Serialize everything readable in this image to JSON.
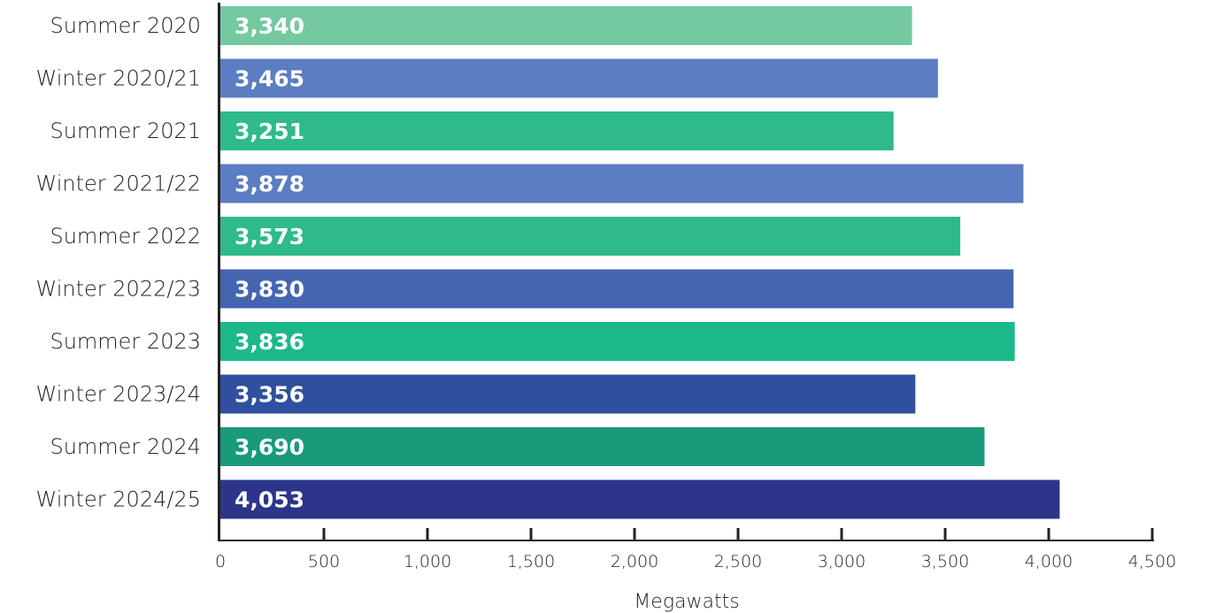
{
  "chart_data": {
    "type": "bar",
    "orientation": "horizontal",
    "categories": [
      "Summer 2020",
      "Winter 2020/21",
      "Summer 2021",
      "Winter 2021/22",
      "Summer 2022",
      "Winter 2022/23",
      "Summer 2023",
      "Winter 2023/24",
      "Summer 2024",
      "Winter 2024/25"
    ],
    "values": [
      3340,
      3465,
      3251,
      3878,
      3573,
      3830,
      3836,
      3356,
      3690,
      4053
    ],
    "value_labels": [
      "3,340",
      "3,465",
      "3,251",
      "3,878",
      "3,573",
      "3,830",
      "3,836",
      "3,356",
      "3,690",
      "4,053"
    ],
    "bar_colors": [
      "#74c9a0",
      "#5b7dc1",
      "#2fba8b",
      "#5b7dc1",
      "#2fba8b",
      "#4465b0",
      "#1bb88a",
      "#2f4f9f",
      "#199a7b",
      "#2c358a"
    ],
    "xlabel": "Megawatts",
    "ylabel": "",
    "xlim": [
      0,
      4500
    ],
    "xticks": [
      0,
      500,
      1000,
      1500,
      2000,
      2500,
      3000,
      3500,
      4000,
      4500
    ],
    "xtick_labels": [
      "0",
      "500",
      "1,000",
      "1,500",
      "2,000",
      "2,500",
      "3,000",
      "3,500",
      "4,000",
      "4,500"
    ],
    "grid": false,
    "legend": "none",
    "axis_color": "#222222"
  }
}
